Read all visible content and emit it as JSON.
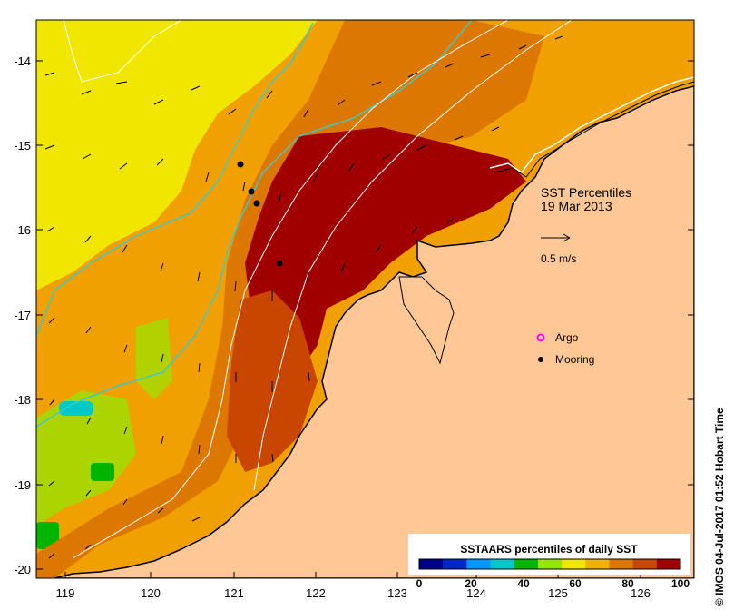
{
  "map": {
    "title_line1": "SST Percentiles",
    "title_line2": "19 Mar 2013",
    "scale_arrow_label": "0.5 m/s",
    "x_ticks": [
      "119",
      "120",
      "121",
      "122",
      "123",
      "124",
      "125",
      "126"
    ],
    "y_ticks": [
      "-14",
      "-15",
      "-16",
      "-17",
      "-18",
      "-19",
      "-20"
    ],
    "legend": {
      "argo_label": "Argo",
      "mooring_label": "Mooring",
      "argo_color": "#ff00ff",
      "mooring_color": "#000000"
    },
    "colorbar": {
      "title": "SSTAARS percentiles of daily SST",
      "tick_labels": [
        "0",
        "20",
        "40",
        "60",
        "80",
        "100"
      ],
      "colors": [
        "#00008b",
        "#0028c8",
        "#0096ff",
        "#00c8c8",
        "#00b400",
        "#96e600",
        "#f0e600",
        "#f0b400",
        "#dc7800",
        "#c84600",
        "#a00000"
      ]
    },
    "land_color": "#fdc896",
    "mooring_markers": 4
  },
  "credit": "© IMOS 04-Jul-2017 01:52 Hobart Time"
}
